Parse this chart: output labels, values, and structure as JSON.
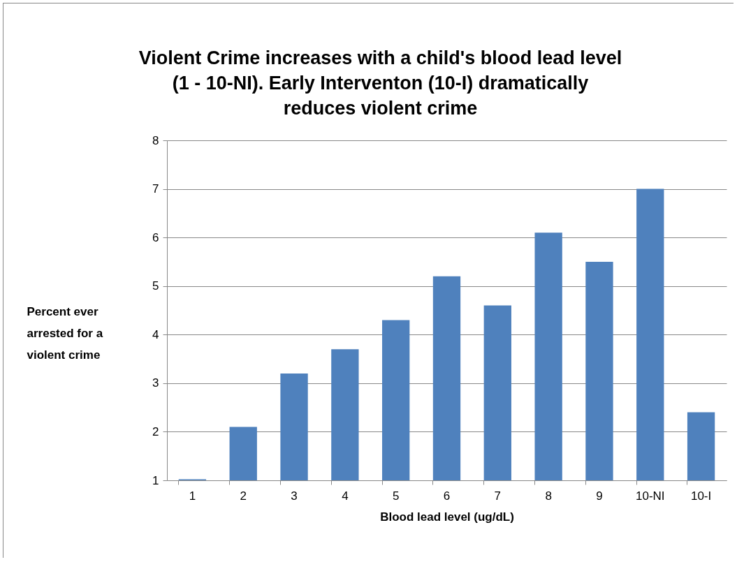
{
  "chart_data": {
    "type": "bar",
    "title": "Violent Crime increases with a child's blood lead level (1 - 10-NI).  Early Interventon (10-I) dramatically reduces violent crime",
    "xlabel": "Blood lead level (ug/dL)",
    "ylabel": "Percent ever arrested for a violent crime",
    "categories": [
      "1",
      "2",
      "3",
      "4",
      "5",
      "6",
      "7",
      "8",
      "9",
      "10-NI",
      "10-I"
    ],
    "values": [
      1.02,
      2.1,
      3.2,
      3.7,
      4.3,
      5.2,
      4.6,
      6.1,
      5.5,
      7.0,
      2.4
    ],
    "color": "#4f81bd",
    "ylim": [
      1,
      8
    ],
    "yticks": [
      1,
      2,
      3,
      4,
      5,
      6,
      7,
      8
    ],
    "grid": "y"
  }
}
